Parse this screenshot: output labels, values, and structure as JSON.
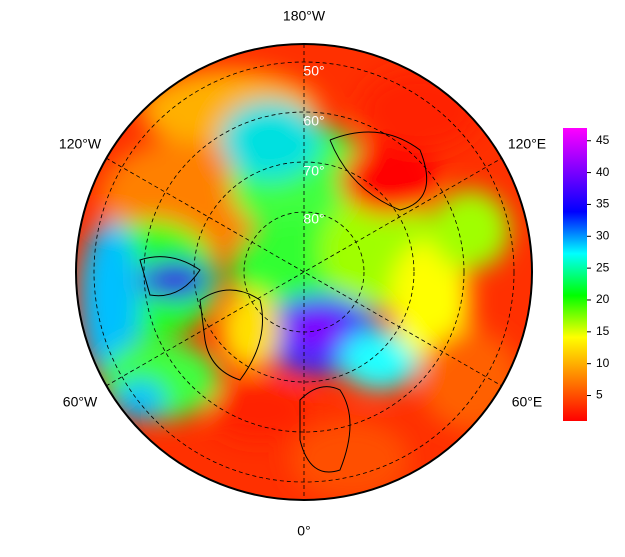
{
  "map": {
    "longitude_labels": [
      "180°W",
      "120°E",
      "60°E",
      "0°",
      "60°W",
      "120°W"
    ],
    "latitude_labels": [
      "50°",
      "60°",
      "70°",
      "80°"
    ]
  },
  "colorbar": {
    "lim": [
      1,
      47
    ],
    "ticks": [
      5,
      10,
      15,
      20,
      25,
      30,
      35,
      40,
      45
    ],
    "colors": [
      "#ff0000",
      "#ff8000",
      "#ffff00",
      "#00ff00",
      "#00ffff",
      "#0000ff",
      "#8000ff",
      "#ff00ff"
    ]
  }
}
